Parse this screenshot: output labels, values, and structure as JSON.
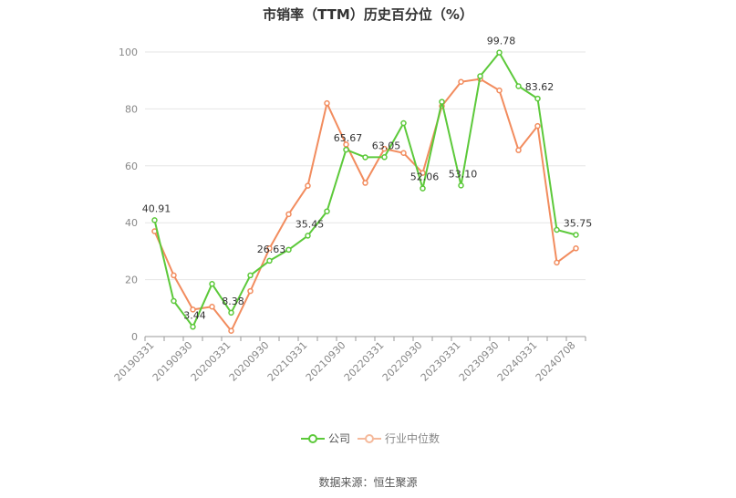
{
  "chart_data": {
    "type": "line",
    "title": "市销率（TTM）历史百分位（%）",
    "ylim": [
      0,
      100
    ],
    "yticks": [
      0,
      20,
      40,
      60,
      80,
      100
    ],
    "grid": true,
    "legend_position": "bottom",
    "x": [
      "20190331",
      "20190630",
      "20190930",
      "20191231",
      "20200331",
      "20200630",
      "20200930",
      "20201231",
      "20210331",
      "20210630",
      "20210930",
      "20211231",
      "20220331",
      "20220630",
      "20220930",
      "20221231",
      "20230331",
      "20230630",
      "20230930",
      "20231231",
      "20240331",
      "20240630",
      "20240708"
    ],
    "x_tick_labels": [
      "20190331",
      "20190930",
      "20200331",
      "20200930",
      "20210331",
      "20210930",
      "20220331",
      "20220930",
      "20230331",
      "20230930",
      "20240331",
      "20240708"
    ],
    "series": [
      {
        "name": "公司",
        "color": "#5cc93a",
        "values": [
          40.91,
          12.5,
          3.44,
          18.5,
          8.38,
          21.5,
          26.63,
          30.5,
          35.45,
          44.0,
          65.67,
          63.0,
          63.05,
          75.0,
          52.06,
          82.5,
          53.1,
          91.5,
          99.78,
          88.0,
          83.62,
          37.5,
          35.75
        ],
        "labels": {
          "0": "40.91",
          "2": "3.44",
          "4": "8.38",
          "6": "26.63",
          "8": "35.45",
          "10": "65.67",
          "12": "63.05",
          "14": "52.06",
          "16": "53.10",
          "18": "99.78",
          "20": "83.62",
          "22": "35.75"
        }
      },
      {
        "name": "行业中位数",
        "color": "#f28c5e",
        "values": [
          37.0,
          21.5,
          9.5,
          10.5,
          2.0,
          16.0,
          31.0,
          43.0,
          53.0,
          82.0,
          67.5,
          54.0,
          66.0,
          64.5,
          57.5,
          81.0,
          89.5,
          90.5,
          86.5,
          65.5,
          74.0,
          26.0,
          31.0
        ]
      }
    ]
  },
  "legend": {
    "company": "公司",
    "industry": "行业中位数"
  },
  "source": "数据来源：恒生聚源"
}
